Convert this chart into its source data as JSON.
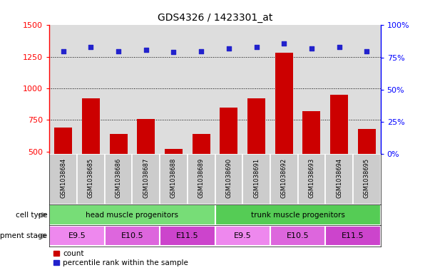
{
  "title": "GDS4326 / 1423301_at",
  "samples": [
    "GSM1038684",
    "GSM1038685",
    "GSM1038686",
    "GSM1038687",
    "GSM1038688",
    "GSM1038689",
    "GSM1038690",
    "GSM1038691",
    "GSM1038692",
    "GSM1038693",
    "GSM1038694",
    "GSM1038695"
  ],
  "counts": [
    690,
    920,
    640,
    760,
    520,
    640,
    850,
    920,
    1280,
    820,
    950,
    680
  ],
  "percentiles": [
    80,
    83,
    80,
    81,
    79,
    80,
    82,
    83,
    86,
    82,
    83,
    80
  ],
  "ylim_left": [
    480,
    1500
  ],
  "ylim_right": [
    0,
    100
  ],
  "yticks_left": [
    500,
    750,
    1000,
    1250,
    1500
  ],
  "yticks_right": [
    0,
    25,
    50,
    75,
    100
  ],
  "bar_color": "#cc0000",
  "scatter_color": "#2222cc",
  "bar_bottom": 480,
  "cell_types": [
    {
      "label": "head muscle progenitors",
      "color": "#77dd77",
      "start": 0,
      "end": 6
    },
    {
      "label": "trunk muscle progenitors",
      "color": "#55cc55",
      "start": 6,
      "end": 12
    }
  ],
  "dev_stages": [
    {
      "label": "E9.5",
      "color": "#ee88ee",
      "start": 0,
      "end": 2
    },
    {
      "label": "E10.5",
      "color": "#dd66dd",
      "start": 2,
      "end": 4
    },
    {
      "label": "E11.5",
      "color": "#cc44cc",
      "start": 4,
      "end": 6
    },
    {
      "label": "E9.5",
      "color": "#ee88ee",
      "start": 6,
      "end": 8
    },
    {
      "label": "E10.5",
      "color": "#dd66dd",
      "start": 8,
      "end": 10
    },
    {
      "label": "E11.5",
      "color": "#cc44cc",
      "start": 10,
      "end": 12
    }
  ],
  "cell_type_label": "cell type",
  "dev_stage_label": "development stage",
  "legend_count_label": "count",
  "legend_pct_label": "percentile rank within the sample",
  "bg_color": "#dddddd",
  "tick_label_bg": "#cccccc"
}
